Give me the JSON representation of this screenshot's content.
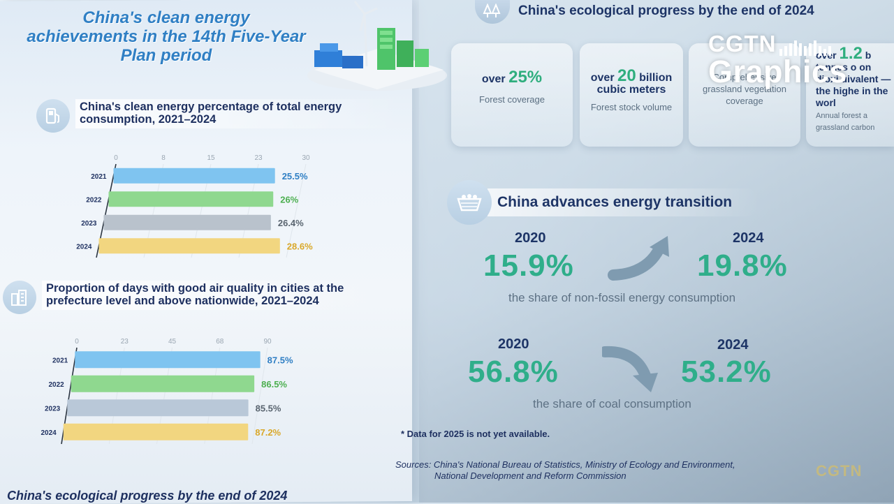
{
  "left": {
    "title": "China's  clean energy achievements in the 14th Five-Year Plan period",
    "section1": {
      "title": "China's clean energy percentage of total energy consumption, 2021–2024",
      "icon": "fuel-pump-icon"
    },
    "section2": {
      "title": "Proportion of days with good air quality in cities at the prefecture level and above nationwide, 2021–2024",
      "icon": "city-buildings-icon"
    },
    "bottom_title": "China's ecological progress by the end of 2024"
  },
  "right": {
    "eco_title": "China's ecological progress by the end of 2024",
    "cards": [
      {
        "prefix": "over ",
        "big": "25%",
        "suffix": "",
        "label": "Forest coverage"
      },
      {
        "prefix": "over ",
        "big": "20",
        "suffix": " billion cubic meters",
        "label": "Forest stock volume"
      },
      {
        "prefix": "",
        "big": "",
        "suffix": "",
        "label": "Comprehensive grassland vegetation coverage"
      },
      {
        "prefix": "over ",
        "big": "1.2",
        "suffix": " b tonnes o on dioxi uivalent — the highe in the worl",
        "label": "Annual forest a grassland carbon"
      }
    ],
    "energy": {
      "title": "China advances energy transition",
      "nonfossil": {
        "year_from": "2020",
        "value_from": "15.9%",
        "year_to": "2024",
        "value_to": "19.8%",
        "desc": "the share of non-fossil energy consumption"
      },
      "coal": {
        "year_from": "2020",
        "value_from": "56.8%",
        "year_to": "2024",
        "value_to": "53.2%",
        "desc": "the share of coal consumption"
      }
    },
    "note": "* Data for 2025 is not yet available.",
    "sources_line1": "Sources: China's National Bureau of Statistics, Ministry of Ecology and Environment,",
    "sources_line2": "National Development and Reform Commission",
    "watermark": "CGTN"
  },
  "brand": {
    "line1": "CGTN",
    "line2": "Graphics"
  },
  "colors": {
    "blue": "#7fc4f0",
    "green": "#8fd88f",
    "gray": "#b9c2cc",
    "yellow": "#f2d680",
    "teal": "#2fae8a",
    "navy": "#1d3466"
  },
  "chart_data": [
    {
      "type": "bar",
      "orientation": "horizontal",
      "categories": [
        "2021",
        "2022",
        "2023",
        "2024"
      ],
      "values": [
        25.5,
        26,
        26.4,
        28.6
      ],
      "labels": [
        "25.5%",
        "26%",
        "26.4%",
        "28.6%"
      ],
      "ticks": [
        "0",
        "8",
        "15",
        "23",
        "30"
      ],
      "xlim": [
        0,
        30
      ],
      "title": "China's clean energy percentage of total energy consumption, 2021–2024",
      "bar_colors": [
        "#7fc4f0",
        "#8fd88f",
        "#b9c2cc",
        "#f2d680"
      ],
      "label_colors": [
        "#2f7fc4",
        "#4caf50",
        "#5a6570",
        "#d9a82a"
      ]
    },
    {
      "type": "bar",
      "orientation": "horizontal",
      "categories": [
        "2021",
        "2022",
        "2023",
        "2024"
      ],
      "values": [
        87.5,
        86.5,
        85.5,
        87.2
      ],
      "labels": [
        "87.5%",
        "86.5%",
        "85.5%",
        "87.2%"
      ],
      "ticks": [
        "0",
        "23",
        "45",
        "68",
        "90"
      ],
      "xlim": [
        0,
        90
      ],
      "title": "Proportion of days with good air quality in cities at the prefecture level and above nationwide, 2021–2024",
      "bar_colors": [
        "#7fc4f0",
        "#8fd88f",
        "#b9c8d8",
        "#f2d680"
      ],
      "label_colors": [
        "#2f7fc4",
        "#4caf50",
        "#5a6570",
        "#d9a82a"
      ]
    }
  ]
}
